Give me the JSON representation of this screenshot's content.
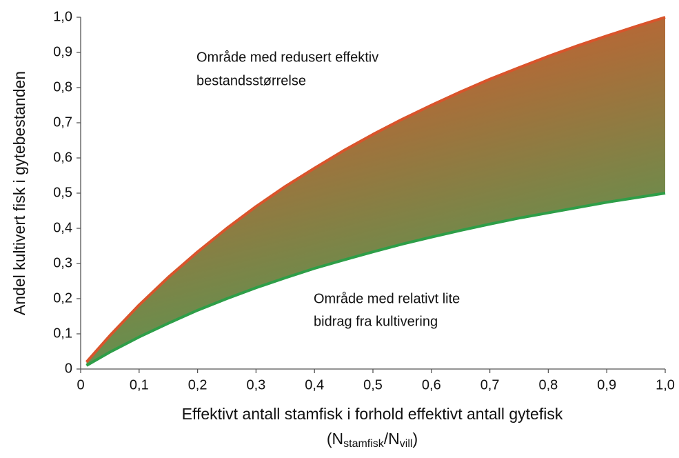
{
  "chart_data": {
    "type": "band",
    "x_label": "Effektivt antall stamfisk i forhold effektivt antall gytefisk",
    "x_label_parts": [
      "(N",
      "stamfisk",
      "/N",
      "vill",
      ")"
    ],
    "y_label": "Andel kultivert fisk i gytebestanden",
    "annotations": [
      {
        "lines": [
          "Område med redusert effektiv",
          "bestandsstørrelse"
        ]
      },
      {
        "lines": [
          "Område med relativt lite",
          "bidrag fra kultivering"
        ]
      }
    ],
    "x": [
      0.01,
      0.05,
      0.1,
      0.15,
      0.2,
      0.25,
      0.3,
      0.35,
      0.4,
      0.45,
      0.5,
      0.55,
      0.6,
      0.65,
      0.7,
      0.75,
      0.8,
      0.85,
      0.9,
      0.95,
      1.0
    ],
    "series": [
      {
        "name": "upper",
        "color": "#d9542b",
        "values": [
          0.02,
          0.095,
          0.182,
          0.261,
          0.333,
          0.4,
          0.462,
          0.519,
          0.571,
          0.621,
          0.667,
          0.71,
          0.75,
          0.788,
          0.824,
          0.857,
          0.889,
          0.919,
          0.947,
          0.974,
          1.0
        ]
      },
      {
        "name": "lower",
        "color": "#2e9e48",
        "values": [
          0.01,
          0.048,
          0.091,
          0.13,
          0.167,
          0.2,
          0.231,
          0.259,
          0.286,
          0.31,
          0.333,
          0.355,
          0.375,
          0.394,
          0.412,
          0.429,
          0.444,
          0.459,
          0.474,
          0.487,
          0.5
        ]
      }
    ],
    "fill_colors": [
      "#d6582c",
      "#3ea35a"
    ],
    "xlim": [
      0,
      1
    ],
    "ylim": [
      0,
      1
    ],
    "xticks": [
      0,
      {
        "value": 0.1,
        "label": "0,1"
      },
      {
        "value": 0.2,
        "label": "0,2"
      },
      {
        "value": 0.3,
        "label": "0,3"
      },
      {
        "value": 0.4,
        "label": "0,4"
      },
      {
        "value": 0.5,
        "label": "0,5"
      },
      {
        "value": 0.6,
        "label": "0,6"
      },
      {
        "value": 0.7,
        "label": "0,7"
      },
      {
        "value": 0.8,
        "label": "0,8"
      },
      {
        "value": 0.9,
        "label": "0,9"
      },
      {
        "value": 1.0,
        "label": "1,0"
      }
    ],
    "yticks": [
      0,
      {
        "value": 0.1,
        "label": "0,1"
      },
      {
        "value": 0.2,
        "label": "0,2"
      },
      {
        "value": 0.3,
        "label": "0,3"
      },
      {
        "value": 0.4,
        "label": "0,4"
      },
      {
        "value": 0.5,
        "label": "0,5"
      },
      {
        "value": 0.6,
        "label": "0,6"
      },
      {
        "value": 0.7,
        "label": "0,7"
      },
      {
        "value": 0.8,
        "label": "0,8"
      },
      {
        "value": 0.9,
        "label": "0,9"
      },
      {
        "value": 1.0,
        "label": "1,0"
      }
    ],
    "grid": false
  }
}
